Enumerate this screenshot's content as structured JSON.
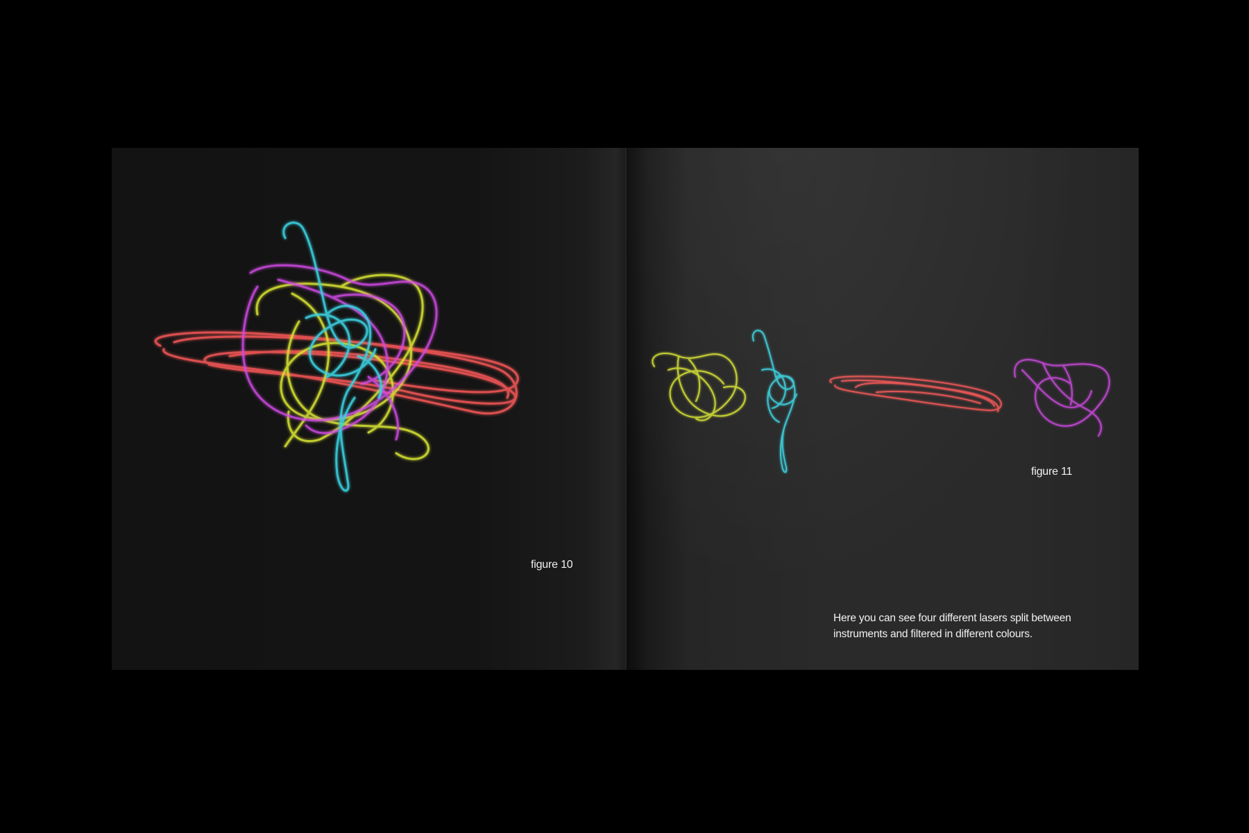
{
  "left_page": {
    "figure_label": "figure 10"
  },
  "right_page": {
    "figure_label": "figure 11",
    "body_lines": [
      "Here you can see four different lasers split between",
      "instruments and filtered in different colours."
    ]
  },
  "colors": {
    "background": "#000000",
    "yellow_laser": "#d4e033",
    "cyan_laser": "#3ad1e0",
    "red_laser": "#ff5a5a",
    "magenta_laser": "#d24be6"
  }
}
